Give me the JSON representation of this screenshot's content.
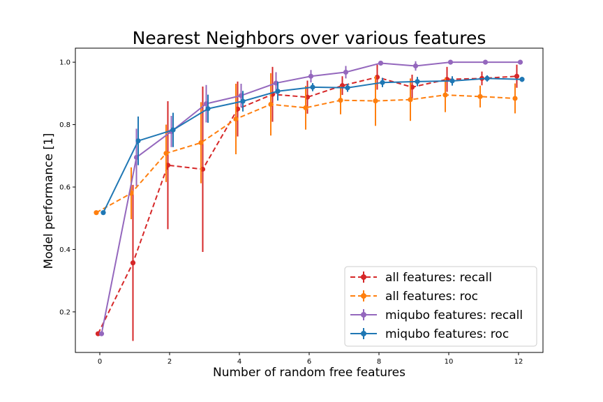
{
  "chart_data": {
    "type": "line",
    "title": "Nearest Neighbors over various features",
    "xlabel": "Number of random free features",
    "ylabel": "Model performance [1]",
    "xlim": [
      -0.7,
      12.7
    ],
    "ylim": [
      0.07,
      1.045
    ],
    "xticks": [
      0,
      2,
      4,
      6,
      8,
      10,
      12
    ],
    "xtick_labels": [
      "0",
      "2",
      "4",
      "6",
      "8",
      "10",
      "12"
    ],
    "yticks": [
      0.2,
      0.4,
      0.6,
      0.8,
      1.0
    ],
    "ytick_labels": [
      "0.2",
      "0.4",
      "0.6",
      "0.8",
      "1.0"
    ],
    "grid": false,
    "legend_position": "bottom-right",
    "series": [
      {
        "name": "all features: recall",
        "color": "#d62728",
        "linestyle": "dashed",
        "x": [
          -0.05,
          0.95,
          1.95,
          2.95,
          3.95,
          4.95,
          5.95,
          6.95,
          7.95,
          8.95,
          9.95,
          10.95,
          11.95
        ],
        "y": [
          0.13,
          0.357,
          0.67,
          0.657,
          0.85,
          0.897,
          0.888,
          0.925,
          0.952,
          0.92,
          0.945,
          0.948,
          0.955
        ],
        "err": [
          0,
          0.25,
          0.205,
          0.265,
          0.088,
          0.088,
          0.053,
          0.03,
          0.04,
          0.04,
          0.04,
          0.022,
          0.037
        ]
      },
      {
        "name": "all features: roc",
        "color": "#ff7f0e",
        "linestyle": "dashed",
        "x": [
          -0.1,
          0.9,
          1.9,
          2.9,
          3.9,
          4.9,
          5.9,
          6.9,
          7.9,
          8.9,
          9.9,
          10.9,
          11.9
        ],
        "y": [
          0.518,
          0.58,
          0.708,
          0.742,
          0.818,
          0.865,
          0.854,
          0.878,
          0.876,
          0.88,
          0.895,
          0.89,
          0.884
        ],
        "err": [
          0,
          0.083,
          0.092,
          0.13,
          0.113,
          0.1,
          0.07,
          0.045,
          0.08,
          0.068,
          0.055,
          0.035,
          0.048
        ]
      },
      {
        "name": "miqubo features: recall",
        "color": "#9467bd",
        "linestyle": "solid",
        "x": [
          0.05,
          1.05,
          2.05,
          3.05,
          4.05,
          5.05,
          6.05,
          7.05,
          8.05,
          9.05,
          10.05,
          11.05,
          12.05
        ],
        "y": [
          0.13,
          0.695,
          0.778,
          0.867,
          0.893,
          0.933,
          0.955,
          0.968,
          0.997,
          0.988,
          1.0,
          1.0,
          1.0
        ],
        "err": [
          0,
          0.092,
          0.05,
          0.06,
          0.038,
          0.035,
          0.02,
          0.02,
          0,
          0.015,
          0,
          0,
          0
        ]
      },
      {
        "name": "miqubo features: roc",
        "color": "#1f77b4",
        "linestyle": "solid",
        "x": [
          0.1,
          1.1,
          2.1,
          3.1,
          4.1,
          5.1,
          6.1,
          7.1,
          8.1,
          9.1,
          10.1,
          11.1,
          12.1
        ],
        "y": [
          0.518,
          0.748,
          0.783,
          0.851,
          0.875,
          0.907,
          0.92,
          0.918,
          0.935,
          0.938,
          0.94,
          0.948,
          0.945
        ],
        "err": [
          0,
          0.078,
          0.055,
          0.045,
          0.033,
          0.03,
          0.013,
          0.013,
          0.015,
          0.015,
          0.015,
          0.01,
          0.008
        ]
      }
    ]
  }
}
